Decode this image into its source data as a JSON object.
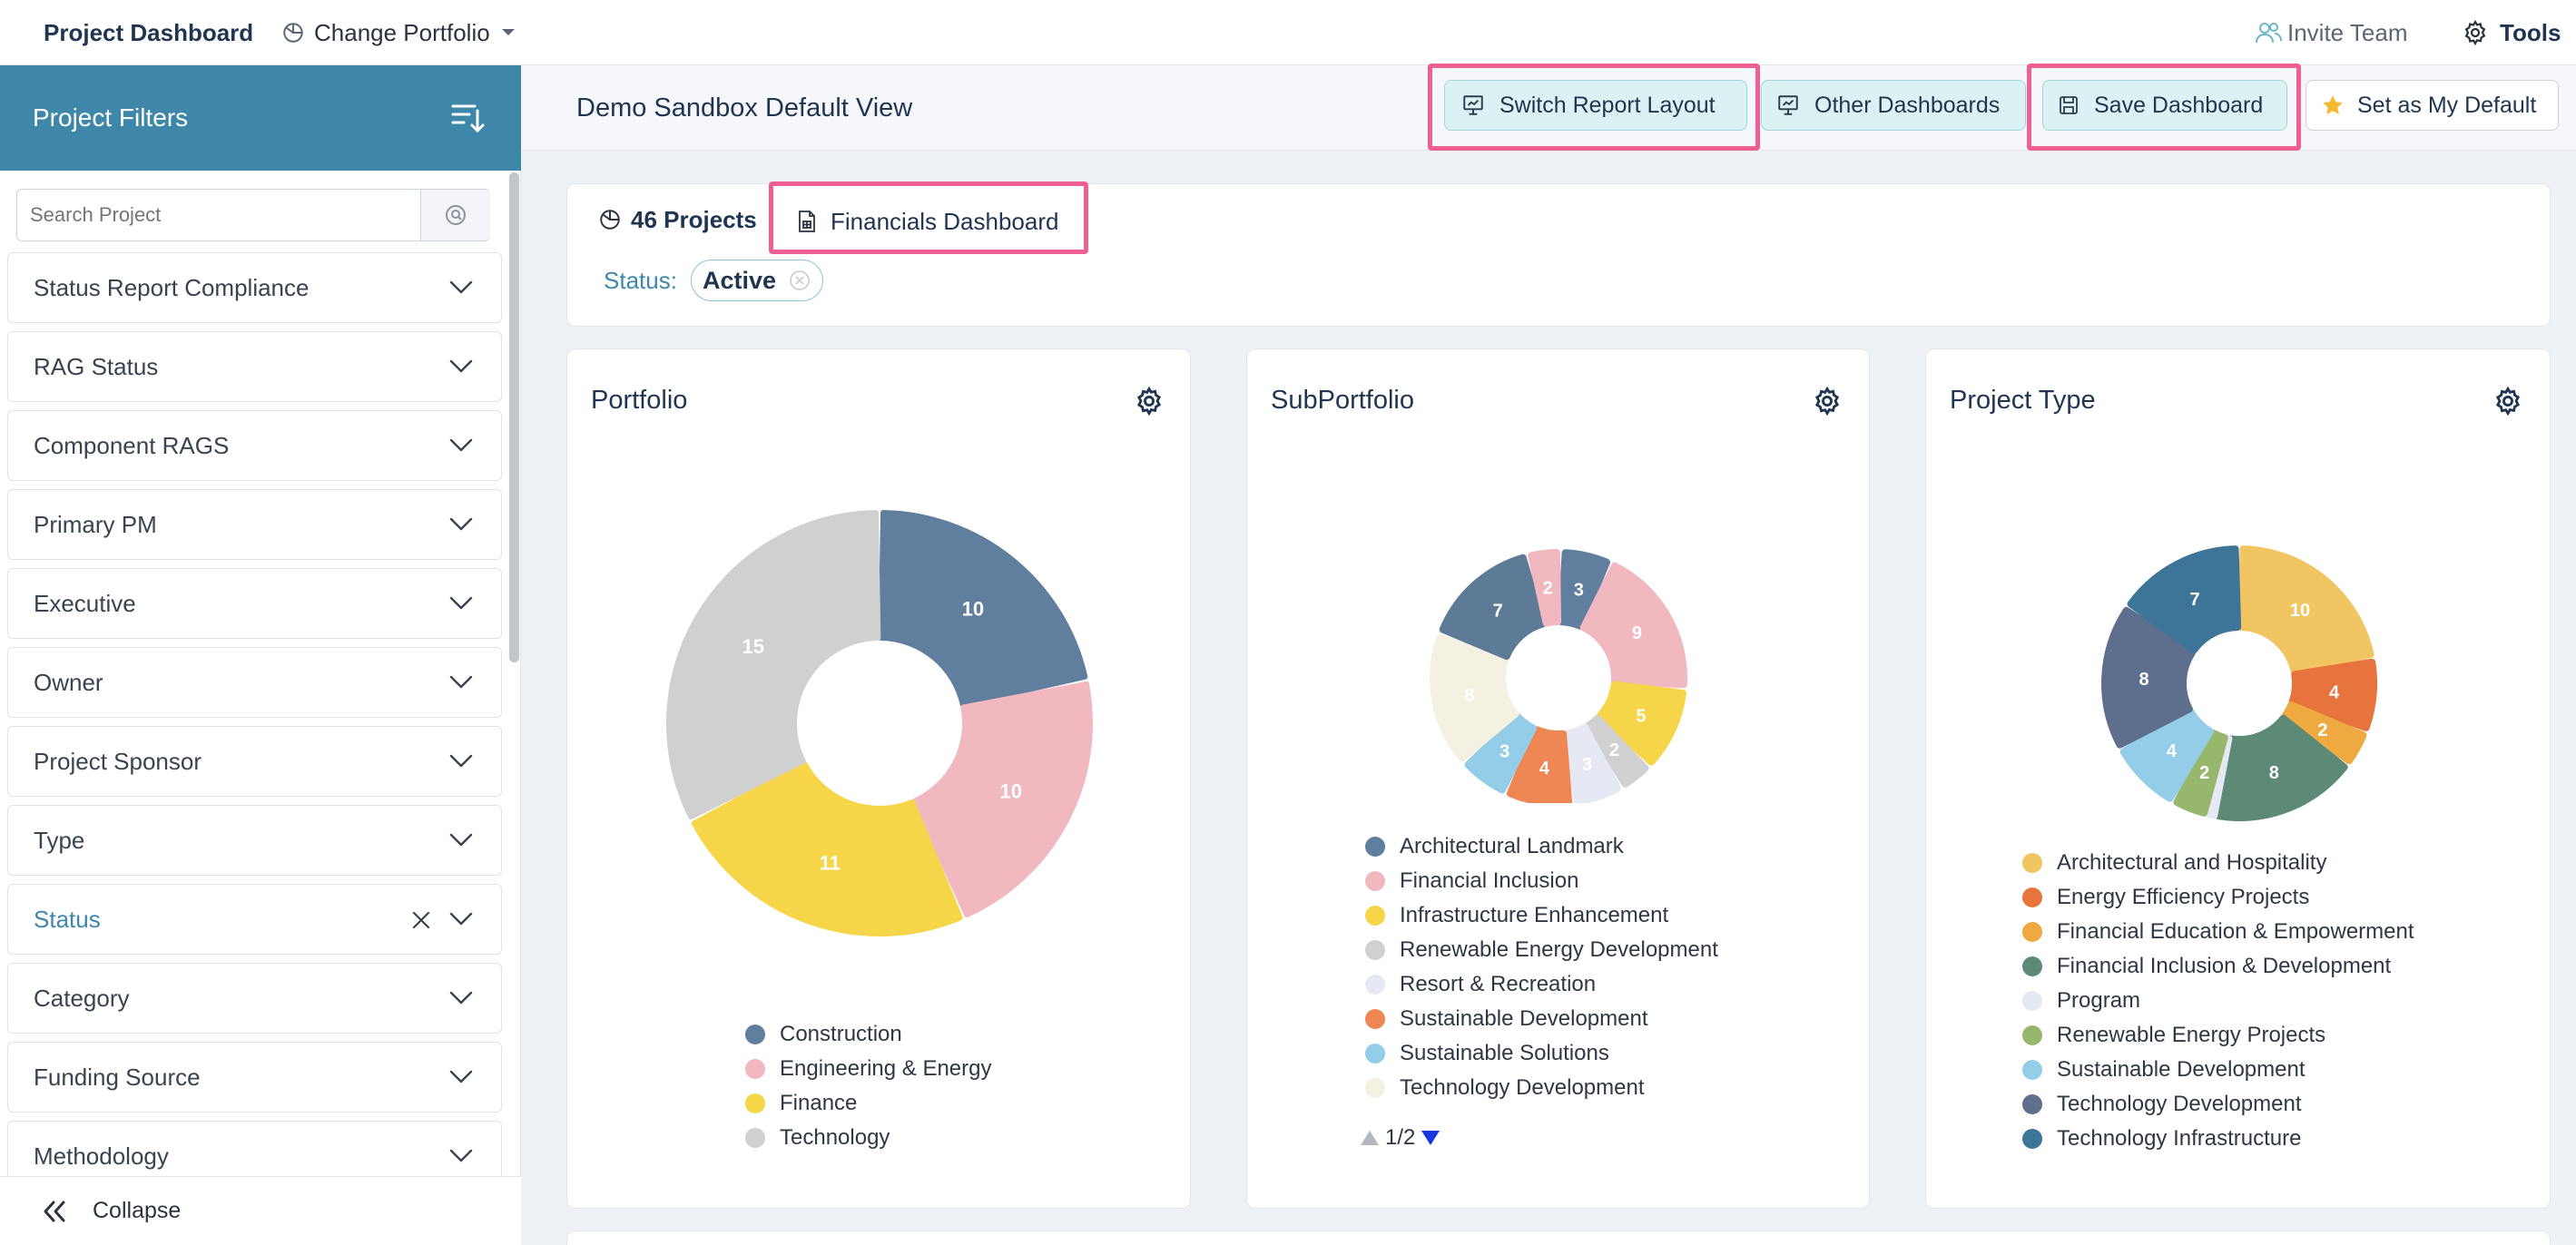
{
  "topbar": {
    "title": "Project Dashboard",
    "change_portfolio": "Change Portfolio",
    "invite_team": "Invite Team",
    "tools": "Tools"
  },
  "sidebar": {
    "title": "Project Filters",
    "search_placeholder": "Search Project",
    "filters": [
      {
        "label": "Status Report Compliance"
      },
      {
        "label": "RAG Status"
      },
      {
        "label": "Component RAGS"
      },
      {
        "label": "Primary PM"
      },
      {
        "label": "Executive"
      },
      {
        "label": "Owner"
      },
      {
        "label": "Project Sponsor"
      },
      {
        "label": "Type"
      },
      {
        "label": "Status",
        "active": true
      },
      {
        "label": "Category"
      },
      {
        "label": "Funding Source"
      },
      {
        "label": "Methodology"
      }
    ],
    "collapse": "Collapse"
  },
  "header": {
    "view_title": "Demo Sandbox Default View",
    "buttons": {
      "switch_layout": "Switch Report Layout",
      "other_dashboards": "Other Dashboards",
      "save_dashboard": "Save Dashboard",
      "set_default": "Set as My Default"
    }
  },
  "summary": {
    "projects": "46 Projects",
    "financials": "Financials Dashboard",
    "status_label": "Status:",
    "status_value": "Active"
  },
  "colors": {
    "accent": "#3e87a9",
    "highlight": "#ef5f92",
    "teal_button": "#dcf1f3"
  },
  "charts": {
    "portfolio": {
      "title": "Portfolio",
      "chart_data": {
        "type": "pie",
        "donut": true,
        "categories": [
          "Construction",
          "Engineering & Energy",
          "Finance",
          "Technology"
        ],
        "values": [
          10,
          10,
          11,
          15
        ],
        "colors": [
          "#607f9e",
          "#f2b8c0",
          "#f7d548",
          "#d0d0d0"
        ]
      }
    },
    "subportfolio": {
      "title": "SubPortfolio",
      "pager": "1/2",
      "chart_data": {
        "type": "pie",
        "donut": true,
        "categories": [
          "Architectural Landmark",
          "Financial Inclusion",
          "Infrastructure Enhancement",
          "Renewable Energy Development",
          "Resort & Recreation",
          "Sustainable Development",
          "Sustainable Solutions",
          "Technology Development"
        ],
        "slices": [
          {
            "label": "3",
            "value": 3,
            "color": "#607f9e"
          },
          {
            "label": "9",
            "value": 9,
            "color": "#f2b8c0"
          },
          {
            "label": "5",
            "value": 5,
            "color": "#f7d548"
          },
          {
            "label": "2",
            "value": 2,
            "color": "#d0d0d0"
          },
          {
            "label": "3",
            "value": 3,
            "color": "#e6e8f4"
          },
          {
            "label": "4",
            "value": 4,
            "color": "#ef8754"
          },
          {
            "label": "3",
            "value": 3,
            "color": "#93cde8"
          },
          {
            "label": "8",
            "value": 8,
            "color": "#f4f1e2"
          },
          {
            "label": "7",
            "value": 7,
            "color": "#5d7a97"
          },
          {
            "label": "2",
            "value": 2,
            "color": "#f2b8c0"
          }
        ],
        "legend_colors": [
          "#607f9e",
          "#f2b8c0",
          "#f7d548",
          "#d0d0d0",
          "#e6e8f4",
          "#ef8754",
          "#93cde8",
          "#f4f1e2"
        ]
      }
    },
    "project_type": {
      "title": "Project Type",
      "chart_data": {
        "type": "pie",
        "donut": true,
        "categories": [
          "Architectural and Hospitality",
          "Energy Efficiency Projects",
          "Financial Education & Empowerment",
          "Financial Inclusion & Development",
          "Program",
          "Renewable Energy Projects",
          "Sustainable Development",
          "Technology Development",
          "Technology Infrastructure"
        ],
        "slices": [
          {
            "label": "10",
            "value": 10,
            "color": "#f1c662"
          },
          {
            "label": "4",
            "value": 4,
            "color": "#e6743c"
          },
          {
            "label": "2",
            "value": 2,
            "color": "#eeaa40"
          },
          {
            "label": "8",
            "value": 8,
            "color": "#5d8a76"
          },
          {
            "label": "",
            "value": 0.4,
            "color": "#e6e8f4"
          },
          {
            "label": "2",
            "value": 2,
            "color": "#97b86c"
          },
          {
            "label": "4",
            "value": 4,
            "color": "#93cde8"
          },
          {
            "label": "8",
            "value": 8,
            "color": "#5d6f8d"
          },
          {
            "label": "7",
            "value": 7,
            "color": "#3c7598"
          }
        ],
        "legend_colors": [
          "#f1c662",
          "#e6743c",
          "#eeaa40",
          "#5d8a76",
          "#e6e8f4",
          "#97b86c",
          "#93cde8",
          "#5d6f8d",
          "#3c7598"
        ]
      }
    }
  }
}
